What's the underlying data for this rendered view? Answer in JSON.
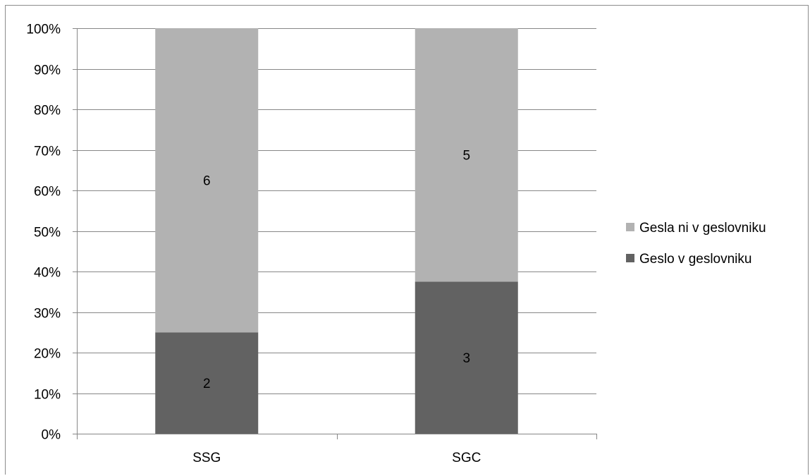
{
  "chart_data": {
    "type": "bar",
    "stacked": "percent",
    "categories": [
      "SSG",
      "SGC"
    ],
    "series": [
      {
        "name": "Geslo v geslovniku",
        "values": [
          2,
          3
        ],
        "color": "#626262"
      },
      {
        "name": "Gesla ni v geslovniku",
        "values": [
          6,
          5
        ],
        "color": "#b2b2b2"
      }
    ],
    "ylim": [
      0,
      100
    ],
    "yticks": [
      "0%",
      "10%",
      "20%",
      "30%",
      "40%",
      "50%",
      "60%",
      "70%",
      "80%",
      "90%",
      "100%"
    ],
    "grid": true,
    "legend_position": "right",
    "title": "",
    "xlabel": "",
    "ylabel": ""
  }
}
